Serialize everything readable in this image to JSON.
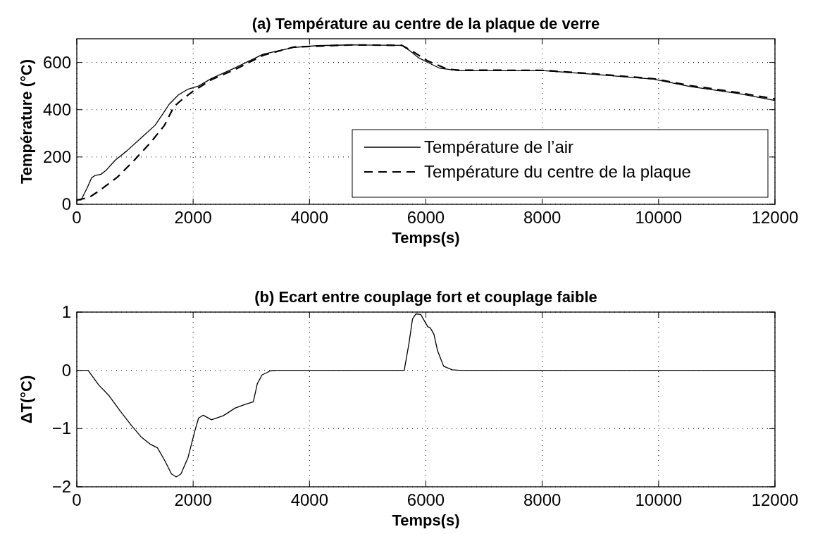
{
  "chart_data": [
    {
      "type": "line",
      "title": "(a) Température au centre de la plaque de verre",
      "xlabel": "Temps(s)",
      "ylabel": "Température (°C)",
      "xlim": [
        0,
        12000
      ],
      "xticks": [
        0,
        2000,
        4000,
        6000,
        8000,
        10000,
        12000
      ],
      "ylim": [
        0,
        700
      ],
      "yticks": [
        0,
        200,
        400,
        600
      ],
      "grid": true,
      "legend": "bottom right",
      "series": [
        {
          "name": "Température de l’air",
          "color": "#000000",
          "line_style": "solid",
          "x": [
            0,
            73,
            174,
            255,
            315,
            416,
            497,
            659,
            861,
            1103,
            1345,
            1467,
            1588,
            1749,
            1911,
            2093,
            2315,
            2719,
            3204,
            3729,
            4133,
            4739,
            5588,
            5709,
            5871,
            6073,
            6242,
            6576,
            7203,
            8038,
            8873,
            9916,
            10543,
            11378,
            12000
          ],
          "values": [
            18,
            18,
            67,
            112,
            122,
            127,
            142,
            186,
            226,
            280,
            334,
            378,
            423,
            463,
            487,
            500,
            532,
            577,
            635,
            663,
            671,
            674,
            672,
            652,
            620,
            595,
            575,
            565,
            565,
            565,
            550,
            529,
            498,
            468,
            439
          ]
        },
        {
          "name": "Température du centre de la plaque",
          "color": "#000000",
          "line_style": "dashed",
          "x": [
            0,
            214,
            396,
            699,
            982,
            1265,
            1507,
            1669,
            1810,
            1992,
            2315,
            2719,
            3204,
            3729,
            4739,
            5588,
            5750,
            6033,
            6367,
            6576,
            7203,
            8038,
            8873,
            9916,
            10543,
            11378,
            12000
          ],
          "values": [
            18,
            29,
            59,
            115,
            185,
            260,
            334,
            413,
            443,
            477,
            527,
            570,
            630,
            665,
            674,
            672,
            650,
            606,
            572,
            567,
            567,
            566,
            552,
            531,
            502,
            472,
            445
          ]
        }
      ]
    },
    {
      "type": "line",
      "title": "(b) Ecart entre couplage fort et couplage faible",
      "xlabel": "Temps(s)",
      "ylabel": "ΔT(°C)",
      "xlim": [
        0,
        12000
      ],
      "xticks": [
        0,
        2000,
        4000,
        6000,
        8000,
        10000,
        12000
      ],
      "ylim": [
        -2,
        1
      ],
      "yticks": [
        {
          "value": -2,
          "label": "−2"
        },
        {
          "value": -1,
          "label": "−1"
        },
        0,
        1
      ],
      "grid": true,
      "series": [
        {
          "color": "#000000",
          "line_style": "solid",
          "x": [
            0,
            194,
            376,
            558,
            739,
            941,
            1103,
            1265,
            1386,
            1507,
            1628,
            1709,
            1790,
            1911,
            2032,
            2093,
            2174,
            2315,
            2517,
            2719,
            2881,
            3034,
            3103,
            3184,
            3325,
            3446,
            5628,
            5709,
            5770,
            5830,
            5911,
            6032,
            6075,
            6138,
            6200,
            6305,
            6451,
            6576,
            12000
          ],
          "values": [
            0,
            0,
            -0.25,
            -0.44,
            -0.69,
            -0.95,
            -1.14,
            -1.27,
            -1.33,
            -1.54,
            -1.78,
            -1.83,
            -1.78,
            -1.5,
            -1.03,
            -0.82,
            -0.77,
            -0.85,
            -0.78,
            -0.65,
            -0.59,
            -0.54,
            -0.23,
            -0.08,
            -0.01,
            0,
            0,
            0.46,
            0.88,
            0.97,
            0.96,
            0.75,
            0.73,
            0.62,
            0.34,
            0.07,
            0.01,
            0,
            0
          ]
        }
      ]
    }
  ]
}
